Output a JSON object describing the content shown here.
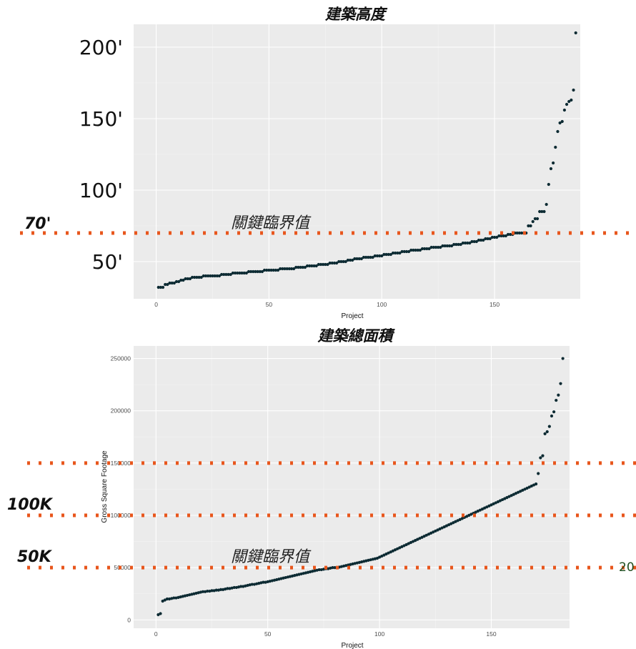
{
  "page_number": "20",
  "colors": {
    "panel": "#ebebeb",
    "grid_major": "#ffffff",
    "point": "#0d2b33",
    "threshold": "#e8561c"
  },
  "chart_data": [
    {
      "type": "scatter",
      "title": "建築高度",
      "xlabel": "Project",
      "ylabel": "",
      "xlim": [
        -10,
        188
      ],
      "ylim": [
        24,
        216
      ],
      "x_ticks": [
        0,
        50,
        100,
        150
      ],
      "x_tick_labels": [
        "0",
        "50",
        "100",
        "150"
      ],
      "y_ticks": [
        50,
        100,
        150,
        200
      ],
      "y_tick_labels": [
        "50'",
        "100'",
        "150'",
        "200'"
      ],
      "grid": true,
      "series": [
        {
          "x_start": 1,
          "values": [
            32,
            32,
            32,
            34,
            34,
            35,
            35,
            35,
            36,
            36,
            37,
            37,
            38,
            38,
            38,
            39,
            39,
            39,
            39,
            39,
            40,
            40,
            40,
            40,
            40,
            40,
            40,
            40,
            41,
            41,
            41,
            41,
            41,
            42,
            42,
            42,
            42,
            42,
            42,
            42,
            43,
            43,
            43,
            43,
            43,
            43,
            43,
            44,
            44,
            44,
            44,
            44,
            44,
            44,
            45,
            45,
            45,
            45,
            45,
            45,
            45,
            46,
            46,
            46,
            46,
            46,
            47,
            47,
            47,
            47,
            47,
            48,
            48,
            48,
            48,
            48,
            49,
            49,
            49,
            49,
            50,
            50,
            50,
            50,
            51,
            51,
            51,
            52,
            52,
            52,
            52,
            53,
            53,
            53,
            53,
            53,
            54,
            54,
            54,
            54,
            55,
            55,
            55,
            55,
            56,
            56,
            56,
            56,
            57,
            57,
            57,
            57,
            58,
            58,
            58,
            58,
            58,
            59,
            59,
            59,
            59,
            60,
            60,
            60,
            60,
            60,
            61,
            61,
            61,
            61,
            61,
            62,
            62,
            62,
            62,
            63,
            63,
            63,
            63,
            64,
            64,
            64,
            65,
            65,
            65,
            66,
            66,
            66,
            67,
            67,
            67,
            68,
            68,
            68,
            68,
            69,
            69,
            69,
            70,
            70,
            70,
            70,
            70,
            70,
            75,
            75,
            78,
            80,
            80,
            85,
            85,
            85,
            90,
            104,
            115,
            119,
            130,
            141,
            147,
            148,
            156,
            160,
            162,
            163,
            170,
            210
          ]
        }
      ],
      "threshold": {
        "value": 70,
        "label": "70'"
      },
      "annotation": "關鍵臨界值"
    },
    {
      "type": "scatter",
      "title": "建築總面積",
      "xlabel": "Project",
      "ylabel": "Gross Square Footage",
      "xlim": [
        -10,
        185
      ],
      "ylim": [
        -8000,
        262000
      ],
      "x_ticks": [
        0,
        50,
        100,
        150
      ],
      "x_tick_labels": [
        "0",
        "50",
        "100",
        "150"
      ],
      "y_ticks": [
        0,
        50000,
        100000,
        150000,
        200000,
        250000
      ],
      "y_tick_labels": [
        "0",
        "50000",
        "100000",
        "150000",
        "200000",
        "250000"
      ],
      "grid": true,
      "series": [
        {
          "x_start": 1,
          "values": [
            5000,
            6000,
            18000,
            19000,
            20000,
            20000,
            20500,
            21000,
            21000,
            21500,
            22000,
            22500,
            23000,
            23500,
            24000,
            24500,
            25000,
            25500,
            26000,
            26500,
            27000,
            27000,
            27500,
            27500,
            28000,
            28000,
            28500,
            28500,
            29000,
            29000,
            29500,
            30000,
            30000,
            30500,
            31000,
            31000,
            31500,
            32000,
            32000,
            32500,
            33000,
            33500,
            34000,
            34000,
            34500,
            35000,
            35500,
            36000,
            36000,
            36500,
            37000,
            37500,
            38000,
            38500,
            39000,
            39500,
            40000,
            40500,
            41000,
            41500,
            42000,
            42500,
            43000,
            43500,
            44000,
            44500,
            45000,
            45500,
            46000,
            46500,
            47000,
            47500,
            48000,
            48000,
            48500,
            49000,
            49000,
            49500,
            50000,
            50000,
            50000,
            50500,
            51000,
            51500,
            52000,
            52500,
            53000,
            53500,
            54000,
            54500,
            55000,
            55500,
            56000,
            56500,
            57000,
            57500,
            58000,
            58500,
            59000,
            60000,
            61000,
            62000,
            63000,
            64000,
            65000,
            66000,
            67000,
            68000,
            69000,
            70000,
            71000,
            72000,
            73000,
            74000,
            75000,
            76000,
            77000,
            78000,
            79000,
            80000,
            81000,
            82000,
            83000,
            84000,
            85000,
            86000,
            87000,
            88000,
            89000,
            90000,
            91000,
            92000,
            93000,
            94000,
            95000,
            96000,
            97000,
            98000,
            99000,
            100000,
            101000,
            102000,
            103000,
            104000,
            105000,
            106000,
            107000,
            108000,
            109000,
            110000,
            111000,
            112000,
            113000,
            114000,
            115000,
            116000,
            117000,
            118000,
            119000,
            120000,
            121000,
            122000,
            123000,
            124000,
            125000,
            126000,
            127000,
            128000,
            129000,
            130000,
            140000,
            155000,
            157000,
            178000,
            180000,
            185000,
            195000,
            199000,
            210000,
            215000,
            226000,
            250000
          ]
        }
      ],
      "thresholds": [
        {
          "value": 150000,
          "label": ""
        },
        {
          "value": 100000,
          "label": "100K"
        },
        {
          "value": 50000,
          "label": "50K"
        }
      ],
      "annotation": "關鍵臨界值"
    }
  ]
}
